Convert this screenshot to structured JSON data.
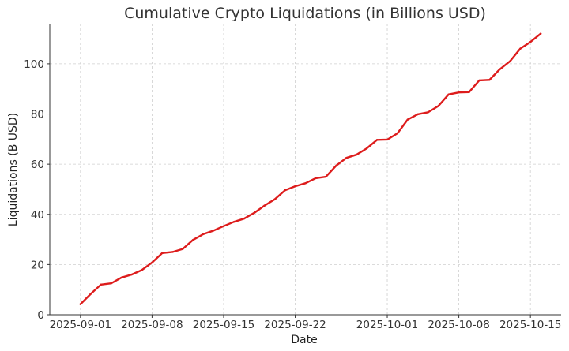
{
  "chart_data": {
    "type": "line",
    "title": "Cumulative Crypto Liquidations (in Billions USD)",
    "xlabel": "Date",
    "ylabel": "Liquidations (B USD)",
    "xlim": [
      "2025-08-29",
      "2025-10-18"
    ],
    "ylim": [
      0,
      116
    ],
    "x_ticks": [
      "2025-09-01",
      "2025-09-08",
      "2025-09-15",
      "2025-09-22",
      "2025-10-01",
      "2025-10-08",
      "2025-10-15"
    ],
    "y_ticks": [
      0,
      20,
      40,
      60,
      80,
      100
    ],
    "grid": true,
    "color": "#dd1c1c",
    "x": [
      "2025-09-01",
      "2025-09-02",
      "2025-09-03",
      "2025-09-04",
      "2025-09-05",
      "2025-09-06",
      "2025-09-07",
      "2025-09-08",
      "2025-09-09",
      "2025-09-10",
      "2025-09-11",
      "2025-09-12",
      "2025-09-13",
      "2025-09-14",
      "2025-09-15",
      "2025-09-16",
      "2025-09-17",
      "2025-09-18",
      "2025-09-19",
      "2025-09-20",
      "2025-09-21",
      "2025-09-22",
      "2025-09-23",
      "2025-09-24",
      "2025-09-25",
      "2025-09-26",
      "2025-09-27",
      "2025-09-28",
      "2025-09-29",
      "2025-09-30",
      "2025-10-01",
      "2025-10-02",
      "2025-10-03",
      "2025-10-04",
      "2025-10-05",
      "2025-10-06",
      "2025-10-07",
      "2025-10-08",
      "2025-10-09",
      "2025-10-10",
      "2025-10-11",
      "2025-10-12",
      "2025-10-13",
      "2025-10-14",
      "2025-10-15",
      "2025-10-16"
    ],
    "values": [
      4.2,
      8.3,
      12.0,
      12.5,
      14.8,
      16.0,
      17.8,
      20.8,
      24.6,
      25.0,
      26.2,
      29.8,
      32.1,
      33.5,
      35.3,
      37.0,
      38.3,
      40.6,
      43.5,
      46.0,
      49.6,
      51.2,
      52.4,
      54.4,
      55.0,
      59.4,
      62.5,
      63.8,
      66.3,
      69.7,
      69.8,
      72.3,
      77.8,
      79.9,
      80.7,
      83.2,
      87.8,
      88.6,
      88.7,
      93.4,
      93.6,
      97.8,
      101.0,
      106.0,
      108.7,
      112.0
    ]
  }
}
